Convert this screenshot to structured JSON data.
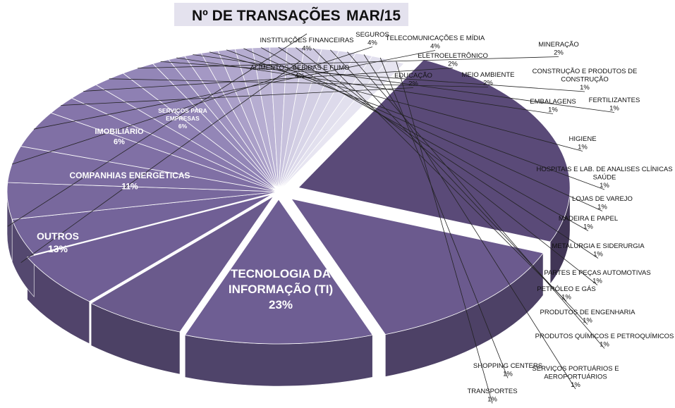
{
  "chart_data": {
    "type": "pie",
    "title": "Nº DE TRANSAÇÕES",
    "subtitle": "MAR/15",
    "slices": [
      {
        "label": "TECNOLOGIA DA INFORMAÇÃO (TI)",
        "value": 23,
        "value_label": "23%",
        "color": "#5a4a78"
      },
      {
        "label": "OUTROS",
        "value": 13,
        "value_label": "13%",
        "color": "#6b5a8e"
      },
      {
        "label": "COMPANHIAS ENERGÉTICAS",
        "value": 11,
        "value_label": "11%",
        "color": "#6e5e93"
      },
      {
        "label": "IMOBILIÁRIO",
        "value": 6,
        "value_label": "6%",
        "color": "#6a5a8c"
      },
      {
        "label": "SERVIÇOS PARA EMPRESAS",
        "value": 6,
        "value_label": "6%",
        "color": "#705f95"
      },
      {
        "label": "ALIMENTOS, BEBIDAS E FUMO",
        "value": 4,
        "value_label": "4%",
        "color": "#74649a"
      },
      {
        "label": "INSTITUIÇÕES FINANCEIRAS",
        "value": 4,
        "value_label": "4%",
        "color": "#78689d"
      },
      {
        "label": "SEGUROS",
        "value": 4,
        "value_label": "4%",
        "color": "#7c6ca1"
      },
      {
        "label": "TELECOMUNICAÇÕES E MÍDIA",
        "value": 4,
        "value_label": "4%",
        "color": "#8070a5"
      },
      {
        "label": "EDUCAÇÃO",
        "value": 2,
        "value_label": "2%",
        "color": "#8575aa"
      },
      {
        "label": "ELETROELETRÔNICO",
        "value": 2,
        "value_label": "2%",
        "color": "#897aae"
      },
      {
        "label": "MEIO AMBIENTE",
        "value": 2,
        "value_label": "2%",
        "color": "#8e80b3"
      },
      {
        "label": "MINERAÇÃO",
        "value": 2,
        "value_label": "2%",
        "color": "#9386b7"
      },
      {
        "label": "CONSTRUÇÃO E PRODUTOS DE CONSTRUÇÃO",
        "value": 1,
        "value_label": "1%",
        "color": "#988cbb"
      },
      {
        "label": "EMBALAGENS",
        "value": 1,
        "value_label": "1%",
        "color": "#9e92bf"
      },
      {
        "label": "FERTILIZANTES",
        "value": 1,
        "value_label": "1%",
        "color": "#a498c4"
      },
      {
        "label": "HIGIENE",
        "value": 1,
        "value_label": "1%",
        "color": "#aa9fc8"
      },
      {
        "label": "HOSPITAIS E LAB. DE ANALISES CLÍNICAS SAÚDE",
        "value": 1,
        "value_label": "1%",
        "color": "#b0a6cc"
      },
      {
        "label": "LOJAS DE VAREJO",
        "value": 1,
        "value_label": "1%",
        "color": "#b6add1"
      },
      {
        "label": "MADEIRA E PAPEL",
        "value": 1,
        "value_label": "1%",
        "color": "#bcb4d5"
      },
      {
        "label": "METALURGIA E SIDERURGIA",
        "value": 1,
        "value_label": "1%",
        "color": "#c2bbd9"
      },
      {
        "label": "PARTES E PEÇAS AUTOMOTIVAS",
        "value": 1,
        "value_label": "1%",
        "color": "#c8c2dd"
      },
      {
        "label": "PETRÓLEO E GÁS",
        "value": 1,
        "value_label": "1%",
        "color": "#cec9e1"
      },
      {
        "label": "PRODUTOS DE ENGENHARIA",
        "value": 1,
        "value_label": "1%",
        "color": "#d3cfe4"
      },
      {
        "label": "PRODUTOS QUÍMICOS E PETROQUÍMICOS",
        "value": 1,
        "value_label": "1%",
        "color": "#d8d5e8"
      },
      {
        "label": "SERVIÇOS PORTUÁRIOS E AEROPORTUÁRIOS",
        "value": 1,
        "value_label": "1%",
        "color": "#dddaeb"
      },
      {
        "label": "SHOPPING CENTERS",
        "value": 1,
        "value_label": "1%",
        "color": "#e2e0ee"
      },
      {
        "label": "TRANSPORTES",
        "value": 1,
        "value_label": "1%",
        "color": "#e7e5f1"
      }
    ],
    "legend": "none",
    "style": "3d-exploded"
  }
}
